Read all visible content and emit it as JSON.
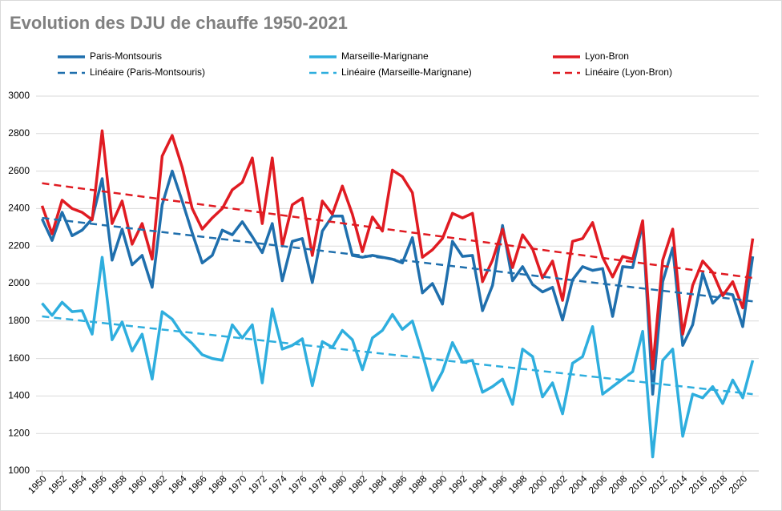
{
  "chart_data": {
    "type": "line",
    "title": "Evolution des DJU de chauffe 1950-2021",
    "x": [
      1950,
      1951,
      1952,
      1953,
      1954,
      1955,
      1956,
      1957,
      1958,
      1959,
      1960,
      1961,
      1962,
      1963,
      1964,
      1965,
      1966,
      1967,
      1968,
      1969,
      1970,
      1971,
      1972,
      1973,
      1974,
      1975,
      1976,
      1977,
      1978,
      1979,
      1980,
      1981,
      1982,
      1983,
      1984,
      1985,
      1986,
      1987,
      1988,
      1989,
      1990,
      1991,
      1992,
      1993,
      1994,
      1995,
      1996,
      1997,
      1998,
      1999,
      2000,
      2001,
      2002,
      2003,
      2004,
      2005,
      2006,
      2007,
      2008,
      2009,
      2010,
      2011,
      2012,
      2013,
      2014,
      2015,
      2016,
      2017,
      2018,
      2019,
      2020,
      2021
    ],
    "xlim": [
      1949.4,
      2021.6
    ],
    "xticks": [
      1950,
      1952,
      1954,
      1956,
      1958,
      1960,
      1962,
      1964,
      1966,
      1968,
      1970,
      1972,
      1974,
      1976,
      1978,
      1980,
      1982,
      1984,
      1986,
      1988,
      1990,
      1992,
      1994,
      1996,
      1998,
      2000,
      2002,
      2004,
      2006,
      2008,
      2010,
      2012,
      2014,
      2016,
      2018,
      2020
    ],
    "ylim": [
      1000,
      3000
    ],
    "yticks": [
      1000,
      1200,
      1400,
      1600,
      1800,
      2000,
      2200,
      2400,
      2600,
      2800,
      3000
    ],
    "grid": true,
    "series": [
      {
        "name": "Paris-Montsouris",
        "color": "#1f6fad",
        "values": [
          2345,
          2230,
          2380,
          2255,
          2285,
          2345,
          2560,
          2125,
          2290,
          2100,
          2150,
          1980,
          2420,
          2600,
          2440,
          2270,
          2110,
          2150,
          2285,
          2260,
          2330,
          2250,
          2165,
          2320,
          2015,
          2225,
          2240,
          2005,
          2280,
          2360,
          2360,
          2150,
          2140,
          2150,
          2140,
          2130,
          2110,
          2245,
          1950,
          2000,
          1890,
          2225,
          2145,
          2150,
          1855,
          1990,
          2310,
          2015,
          2090,
          1995,
          1955,
          1980,
          1805,
          2020,
          2090,
          2070,
          2080,
          1825,
          2090,
          2085,
          2320,
          1410,
          2010,
          2190,
          1670,
          1780,
          2055,
          1895,
          1950,
          1940,
          1770,
          2145
        ]
      },
      {
        "name": "Marseille-Marignane",
        "color": "#2eaede",
        "values": [
          1895,
          1830,
          1900,
          1850,
          1855,
          1730,
          2140,
          1700,
          1795,
          1640,
          1730,
          1490,
          1850,
          1810,
          1730,
          1680,
          1620,
          1600,
          1590,
          1780,
          1710,
          1780,
          1470,
          1865,
          1650,
          1670,
          1705,
          1455,
          1690,
          1660,
          1750,
          1700,
          1540,
          1710,
          1750,
          1835,
          1755,
          1800,
          1625,
          1430,
          1530,
          1685,
          1580,
          1590,
          1420,
          1450,
          1490,
          1355,
          1650,
          1610,
          1395,
          1470,
          1305,
          1575,
          1610,
          1770,
          1410,
          1450,
          1490,
          1530,
          1745,
          1075,
          1590,
          1650,
          1185,
          1410,
          1390,
          1450,
          1360,
          1485,
          1390,
          1590
        ]
      },
      {
        "name": "Lyon-Bron",
        "color": "#e01b22",
        "values": [
          2415,
          2265,
          2445,
          2400,
          2380,
          2340,
          2815,
          2320,
          2440,
          2210,
          2320,
          2130,
          2680,
          2790,
          2620,
          2400,
          2290,
          2350,
          2400,
          2500,
          2540,
          2670,
          2320,
          2670,
          2200,
          2420,
          2455,
          2150,
          2440,
          2370,
          2520,
          2370,
          2170,
          2355,
          2280,
          2605,
          2570,
          2485,
          2140,
          2180,
          2240,
          2375,
          2350,
          2375,
          2010,
          2125,
          2290,
          2085,
          2260,
          2185,
          2030,
          2120,
          1910,
          2225,
          2240,
          2325,
          2140,
          2035,
          2145,
          2130,
          2335,
          1545,
          2125,
          2290,
          1730,
          1990,
          2120,
          2060,
          1935,
          2010,
          1870,
          2240
        ]
      },
      {
        "name": "Linéaire (Paris-Montsouris)",
        "color": "#1f6fad",
        "dashed": true,
        "x": [
          1950,
          2021
        ],
        "values": [
          2350,
          1905
        ]
      },
      {
        "name": "Linéaire (Marseille-Marignane)",
        "color": "#2eaede",
        "dashed": true,
        "x": [
          1950,
          2021
        ],
        "values": [
          1825,
          1410
        ]
      },
      {
        "name": "Linéaire (Lyon-Bron)",
        "color": "#e01b22",
        "dashed": true,
        "x": [
          1950,
          2021
        ],
        "values": [
          2535,
          2030
        ]
      }
    ]
  }
}
